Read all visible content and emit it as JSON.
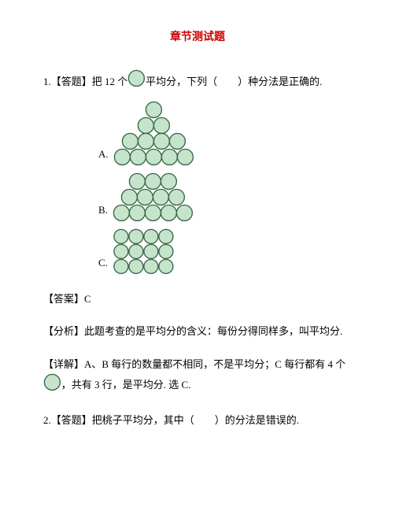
{
  "title": "章节测试题",
  "q1": {
    "prefix": "1.【答题】把 12 个",
    "suffix": "平均分，下列（　　）种分法是正确的.",
    "labelA": "A.",
    "labelB": "B.",
    "labelC": "C."
  },
  "answer": "【答案】C",
  "analysis": "【分析】此题考查的是平均分的含义：每份分得同样多，叫平均分.",
  "solve": {
    "part1": "【详解】A、B 每行的数量都不相同，不是平均分；C 每行都有 4 个",
    "part2": "，共有 3 行，是平均分. 选 C."
  },
  "q2": "2.【答题】把桃子平均分，其中（　　）的分法是错误的.",
  "circle": {
    "fill": "#c6e4cb",
    "stroke": "#3d6b4a",
    "strokeWidth": 1.4,
    "radius": 10,
    "spacing": 20,
    "radiusSmall": 9,
    "spacingSmall": 19
  },
  "shapes": {
    "A": {
      "rows": [
        1,
        2,
        4,
        5
      ],
      "radius": 10,
      "spacing": 20
    },
    "B": {
      "rows": [
        3,
        4,
        5
      ],
      "radius": 10,
      "spacing": 20
    },
    "C": {
      "rows": [
        4,
        4,
        4
      ],
      "radius": 9,
      "spacing": 19
    }
  }
}
